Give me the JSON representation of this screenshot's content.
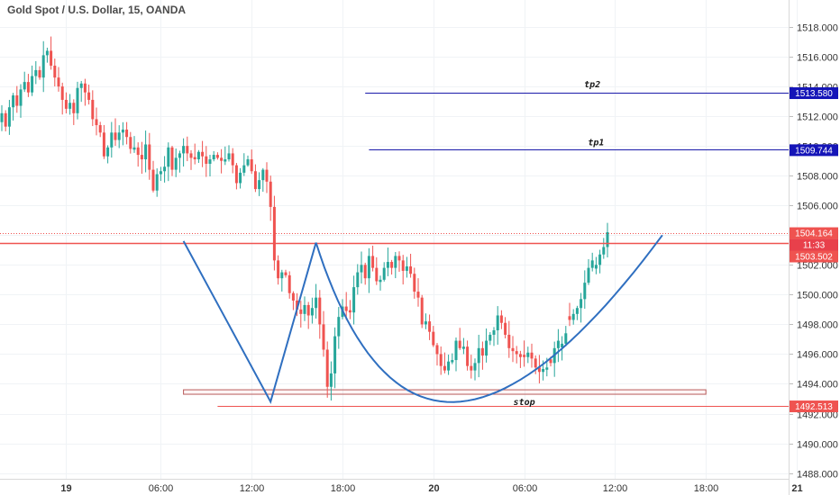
{
  "chart_data": {
    "type": "candlestick",
    "title": "Gold Spot / U.S. Dollar, 15, OANDA",
    "xlabel": "",
    "ylabel": "",
    "ylim": [
      1487.0,
      1520.0
    ],
    "y_ticks": [
      "1518.000",
      "1516.000",
      "1514.000",
      "1512.000",
      "1510.000",
      "1508.000",
      "1506.000",
      "1504.000",
      "1502.000",
      "1500.000",
      "1498.000",
      "1496.000",
      "1494.000",
      "1492.000",
      "1490.000",
      "1488.000"
    ],
    "x_ticks": [
      "19",
      "06:00",
      "12:00",
      "18:00",
      "20",
      "06:00",
      "12:00",
      "18:00",
      "21"
    ],
    "x_axis": "15-minute bars from 18 to 21; bars cover 0..162 with date ticks at bars 17, 42, 66, 90, 114, 138, 162, 186, 210",
    "closes": [
      1512.2,
      1511.3,
      1512.6,
      1513.4,
      1512.7,
      1513.8,
      1514.3,
      1513.6,
      1514.7,
      1515.1,
      1514.6,
      1516.1,
      1516.4,
      1515.4,
      1514.6,
      1514.0,
      1513.1,
      1512.5,
      1512.9,
      1512.2,
      1513.9,
      1514.2,
      1513.6,
      1513.1,
      1511.8,
      1511.4,
      1510.9,
      1509.3,
      1509.9,
      1510.9,
      1510.4,
      1510.9,
      1511.1,
      1510.6,
      1509.8,
      1509.9,
      1509.4,
      1509.1,
      1510.1,
      1508.4,
      1507.0,
      1508.1,
      1508.3,
      1508.6,
      1509.9,
      1508.4,
      1509.2,
      1509.5,
      1510.0,
      1509.5,
      1509.2,
      1509.1,
      1509.6,
      1509.3,
      1508.8,
      1509.1,
      1509.4,
      1509.2,
      1509.0,
      1509.1,
      1509.5,
      1508.7,
      1507.5,
      1508.2,
      1508.7,
      1509.1,
      1508.3,
      1507.1,
      1507.7,
      1508.4,
      1507.6,
      1505.9,
      1502.3,
      1501.1,
      1501.5,
      1501.3,
      1500.1,
      1499.6,
      1499.0,
      1498.7,
      1499.3,
      1498.6,
      1499.1,
      1499.8,
      1498.0,
      1496.3,
      1493.8,
      1494.7,
      1497.2,
      1498.5,
      1499.2,
      1498.9,
      1498.8,
      1500.5,
      1501.5,
      1502.0,
      1501.1,
      1502.6,
      1501.8,
      1500.9,
      1501.0,
      1501.8,
      1502.2,
      1501.8,
      1502.6,
      1502.3,
      1501.6,
      1501.9,
      1501.4,
      1500.2,
      1499.8,
      1498.0,
      1498.2,
      1497.5,
      1496.6,
      1496.0,
      1495.2,
      1494.9,
      1495.5,
      1495.6,
      1496.9,
      1496.4,
      1496.5,
      1495.2,
      1494.9,
      1495.4,
      1496.4,
      1495.9,
      1496.9,
      1497.3,
      1497.6,
      1498.6,
      1498.1,
      1497.3,
      1496.4,
      1496.2,
      1496.0,
      1495.8,
      1495.8,
      1496.1,
      1495.7,
      1495.1,
      1494.8,
      1495.0,
      1495.1,
      1495.4,
      1496.4,
      1496.9,
      1496.7,
      1497.4,
      1498.3,
      1498.7,
      1499.1,
      1499.7,
      1500.8,
      1501.8,
      1502.3,
      1502.0,
      1502.7,
      1503.2,
      1504.2
    ],
    "down_bars": [
      1,
      4,
      7,
      10,
      13,
      14,
      15,
      16,
      17,
      19,
      22,
      23,
      24,
      25,
      26,
      27,
      30,
      33,
      34,
      36,
      37,
      39,
      40,
      45,
      49,
      50,
      51,
      53,
      54,
      57,
      58,
      61,
      62,
      66,
      67,
      70,
      71,
      72,
      73,
      75,
      76,
      77,
      78,
      79,
      81,
      84,
      85,
      86,
      91,
      92,
      96,
      98,
      99,
      103,
      105,
      106,
      108,
      109,
      110,
      111,
      113,
      114,
      115,
      116,
      117,
      121,
      123,
      124,
      127,
      132,
      133,
      134,
      135,
      136,
      137,
      138,
      140,
      141,
      142,
      145,
      150
    ],
    "levels": [
      {
        "name": "tp2",
        "value": 1513.58,
        "label": "1513.580",
        "color": "#1a1aaa"
      },
      {
        "name": "tp1",
        "value": 1509.744,
        "label": "1509.744",
        "color": "#1a1aaa"
      },
      {
        "name": "current",
        "value": 1504.164,
        "label": "1504.164",
        "color": "#ef5350"
      },
      {
        "name": "neckline",
        "value": 1503.502,
        "label": "1503.502",
        "color": "#ef5350"
      },
      {
        "name": "stop",
        "value": 1492.513,
        "label": "1492.513",
        "color": "#ef5350"
      }
    ],
    "countdown": "11:33",
    "annotations": {
      "tp2": "tp2",
      "tp1": "tp1",
      "stop": "stop"
    },
    "zone": {
      "low": 1493.3,
      "high": 1493.6
    },
    "colors": {
      "up": "#26a69a",
      "down": "#ef5350",
      "drawing": "#2f6fc0",
      "level_blue": "#1a1aaa",
      "level_red": "#ef5350",
      "badge_gray": "#e8404b"
    }
  }
}
